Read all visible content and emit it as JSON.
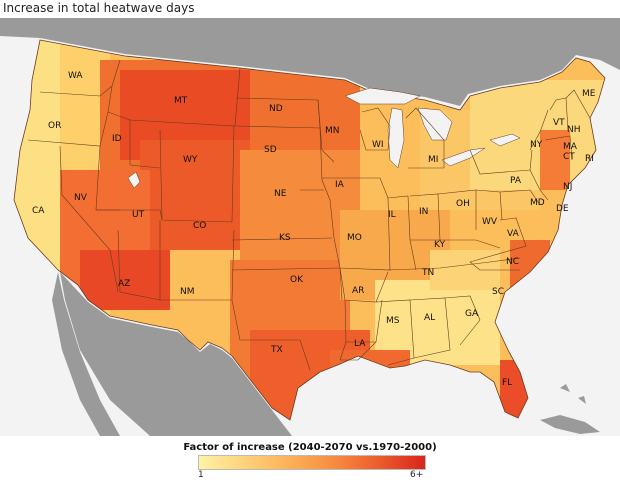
{
  "title": "Increase in total heatwave days",
  "legend": {
    "title": "Factor of increase (2040-2070 vs.1970-2000)",
    "min_label": "1",
    "max_label": "6+",
    "color_low": "#fff3a6",
    "color_high": "#d9251c"
  },
  "colors": {
    "land_other": "#9a9a9a",
    "water": "#f3f3f3",
    "state_border": "#6b3a1e"
  },
  "states": {
    "WA": "WA",
    "OR": "OR",
    "CA": "CA",
    "ID": "ID",
    "NV": "NV",
    "MT": "MT",
    "WY": "WY",
    "UT": "UT",
    "AZ": "AZ",
    "CO": "CO",
    "NM": "NM",
    "ND": "ND",
    "SD": "SD",
    "NE": "NE",
    "KS": "KS",
    "OK": "OK",
    "TX": "TX",
    "MN": "MN",
    "IA": "IA",
    "MO": "MO",
    "AR": "AR",
    "LA": "LA",
    "WI": "WI",
    "IL": "IL",
    "MI": "MI",
    "IN": "IN",
    "OH": "OH",
    "KY": "KY",
    "TN": "TN",
    "MS": "MS",
    "AL": "AL",
    "GA": "GA",
    "FL": "FL",
    "SC": "SC",
    "NC": "NC",
    "VA": "VA",
    "WV": "WV",
    "PA": "PA",
    "NY": "NY",
    "MD": "MD",
    "DE": "DE",
    "NJ": "NJ",
    "CT": "CT",
    "RI": "RI",
    "MA": "MA",
    "VT": "VT",
    "NH": "NH",
    "ME": "ME"
  }
}
